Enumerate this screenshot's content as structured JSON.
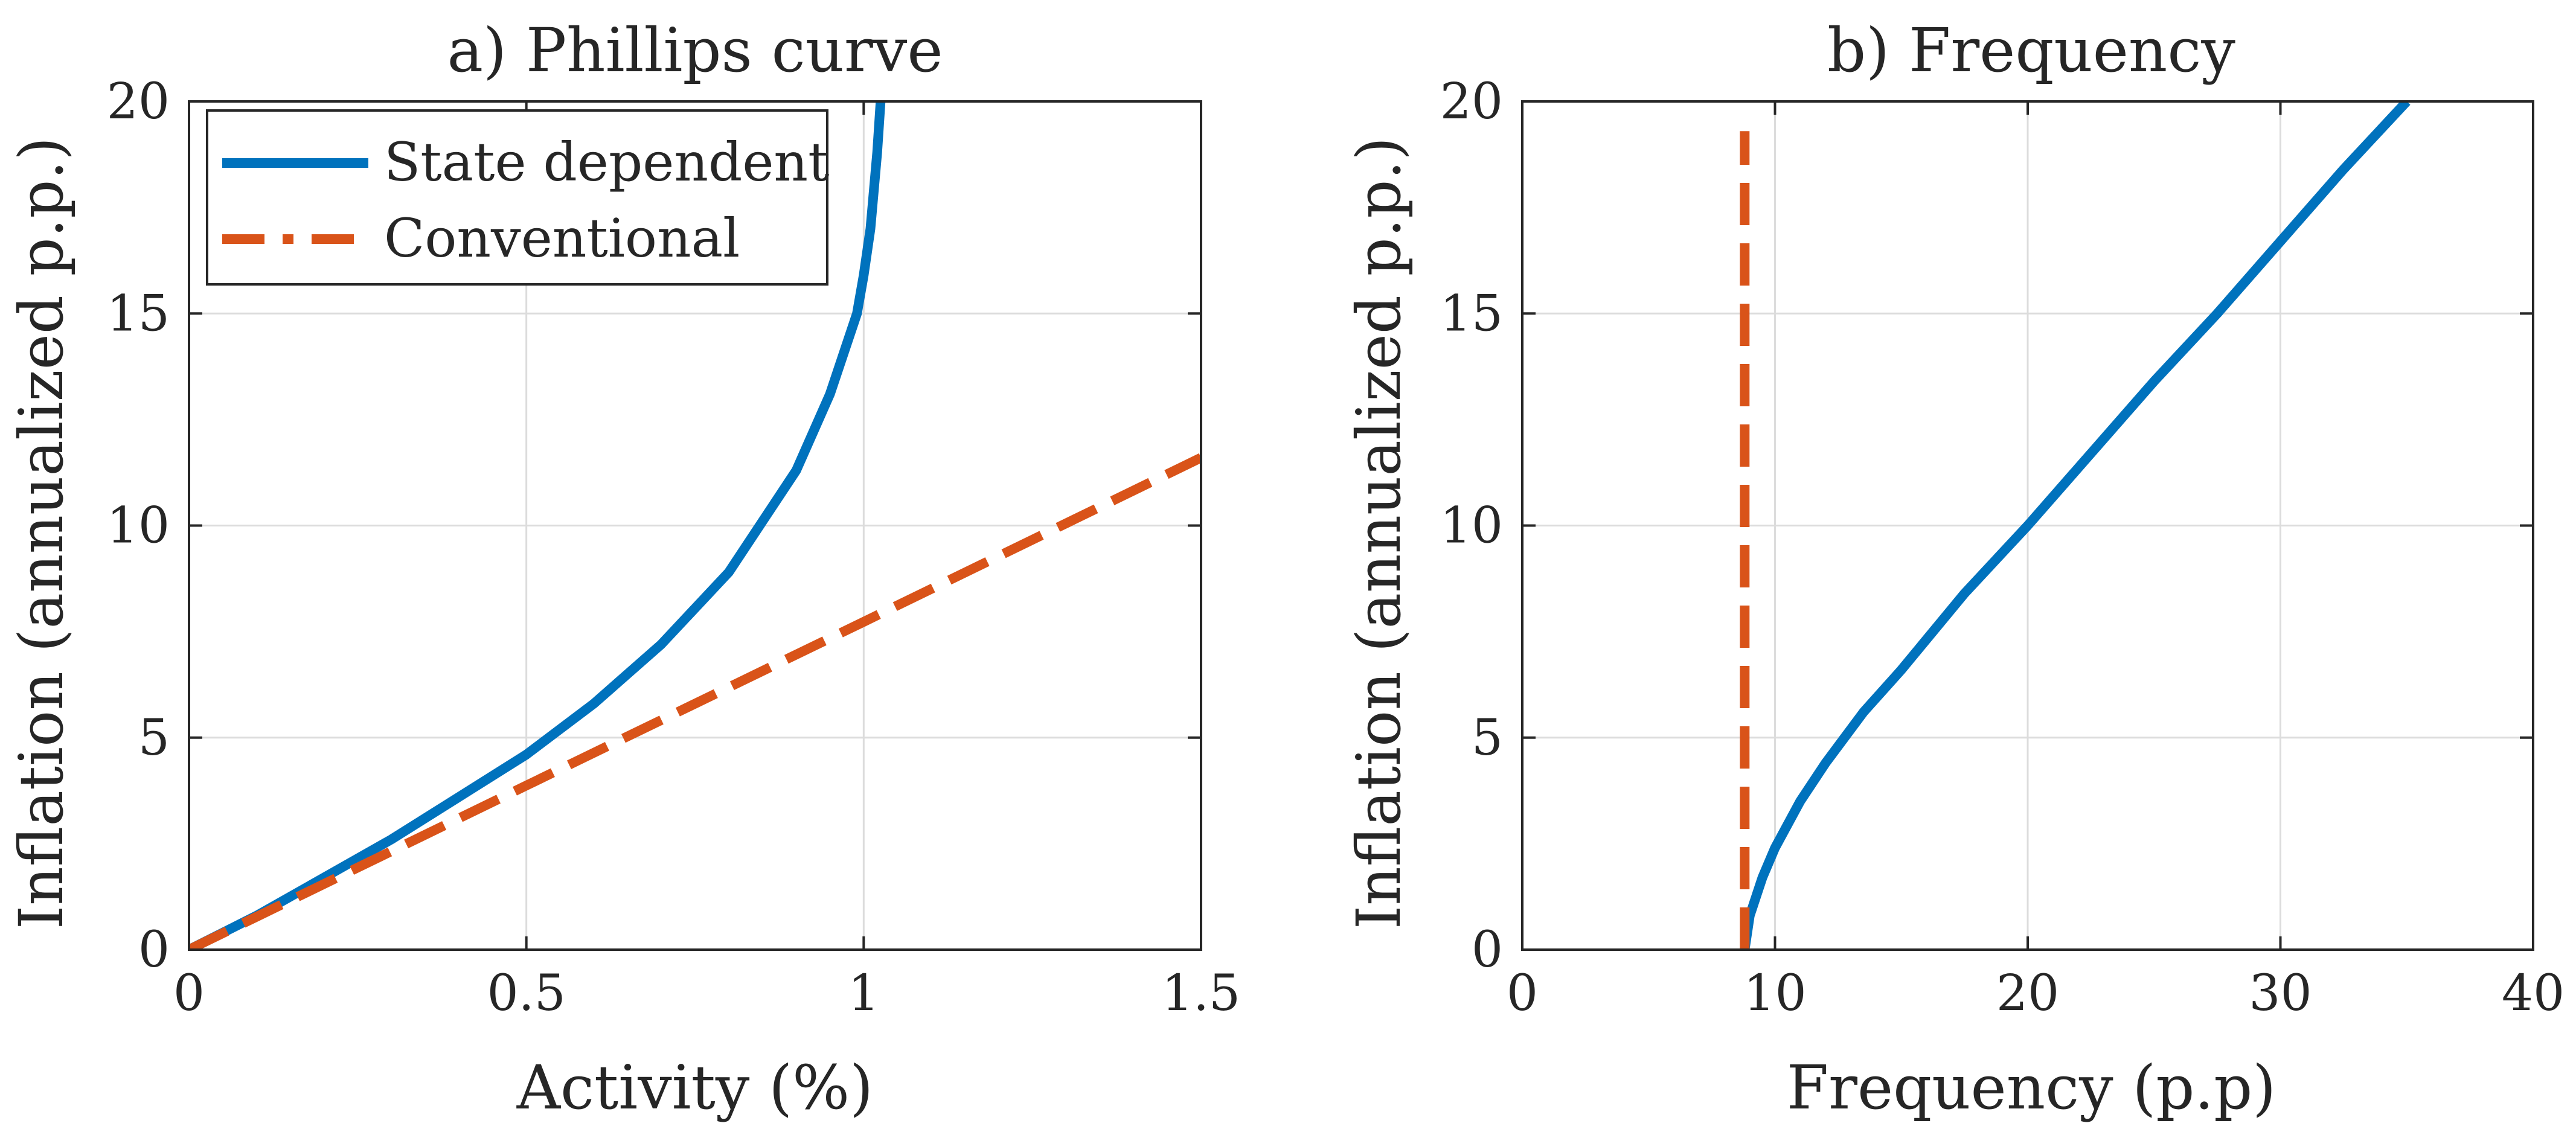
{
  "chart_data": [
    {
      "type": "line",
      "title": "a) Phillips curve",
      "xlabel": "Activity (%)",
      "ylabel": "Inflation (annualized p.p.)",
      "xlim": [
        0,
        1.5
      ],
      "ylim": [
        0,
        20
      ],
      "xticks": [
        0,
        0.5,
        1,
        1.5
      ],
      "xtick_labels": [
        "0",
        "0.5",
        "1",
        "1.5"
      ],
      "yticks": [
        0,
        5,
        10,
        15,
        20
      ],
      "ytick_labels": [
        "0",
        "5",
        "10",
        "15",
        "20"
      ],
      "grid": true,
      "legend": {
        "position": "top-left",
        "entries": [
          "State dependent",
          "Conventional"
        ]
      },
      "series": [
        {
          "name": "State dependent",
          "style": "solid",
          "color": "#0072BD",
          "x": [
            0,
            0.1,
            0.2,
            0.3,
            0.4,
            0.5,
            0.6,
            0.7,
            0.8,
            0.9,
            0.95,
            0.99,
            1.0,
            1.01,
            1.02,
            1.025
          ],
          "y": [
            0,
            0.8,
            1.7,
            2.6,
            3.6,
            4.6,
            5.8,
            7.2,
            8.9,
            11.3,
            13.1,
            15.0,
            15.9,
            17.0,
            18.8,
            20
          ]
        },
        {
          "name": "Conventional",
          "style": "dashed",
          "color": "#D95319",
          "x": [
            0,
            0.5,
            1.0,
            1.5
          ],
          "y": [
            0,
            3.87,
            7.73,
            11.6
          ]
        }
      ]
    },
    {
      "type": "line",
      "title": "b) Frequency",
      "xlabel": "Frequency (p.p)",
      "ylabel": "Inflation (annualized p.p.)",
      "xlim": [
        0,
        40
      ],
      "ylim": [
        0,
        20
      ],
      "xticks": [
        0,
        10,
        20,
        30,
        40
      ],
      "xtick_labels": [
        "0",
        "10",
        "20",
        "30",
        "40"
      ],
      "yticks": [
        0,
        5,
        10,
        15,
        20
      ],
      "ytick_labels": [
        "0",
        "5",
        "10",
        "15",
        "20"
      ],
      "grid": true,
      "series": [
        {
          "name": "State dependent",
          "style": "solid",
          "color": "#0072BD",
          "x": [
            8.8,
            9.0,
            9.5,
            10.0,
            11.0,
            12.0,
            13.5,
            15.0,
            17.5,
            20.0,
            22.5,
            25.0,
            27.5,
            30.0,
            32.5,
            35.0
          ],
          "y": [
            0,
            0.8,
            1.7,
            2.4,
            3.5,
            4.4,
            5.6,
            6.6,
            8.4,
            10.0,
            11.7,
            13.4,
            15.0,
            16.7,
            18.4,
            20.0
          ]
        },
        {
          "name": "Conventional",
          "style": "dashed",
          "color": "#D95319",
          "x": [
            8.8,
            8.8
          ],
          "y": [
            0,
            19.3
          ]
        }
      ]
    }
  ]
}
